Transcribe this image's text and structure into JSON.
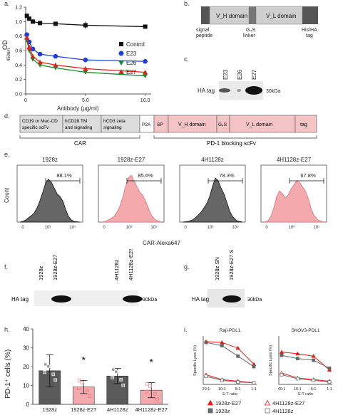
{
  "panels": {
    "a": {
      "label": "a.",
      "ylabel": "OD",
      "ylabel_sub": "450nm",
      "xlabel": "Antibody (μg/ml)",
      "yticks": [
        "0.0",
        "0.2",
        "0.4",
        "0.6",
        "0.8",
        "1.0",
        "1.2"
      ],
      "xticks": [
        "0",
        "5.0",
        "10.0"
      ]
    },
    "b": {
      "label": "b.",
      "signal": "signal\npeptide",
      "vh": "V_H domain",
      "vl": "V_L domain",
      "g4s": "G₄S\nlinker",
      "tag": "His/HA\ntag"
    },
    "c": {
      "label": "c.",
      "lanes": [
        "E23",
        "E26",
        "E27"
      ],
      "ha": "HA tag",
      "kda": "30kDa"
    },
    "d": {
      "label": "d.",
      "box1": "CD19 or Muc-CD",
      "box1b": "specific scFv",
      "box2": "hCD28 TM",
      "box2b": "and signaling",
      "box3": "hCD3 zeta",
      "box3b": "signaling",
      "p2a": "P2A",
      "sp": "SP",
      "vh": "V_H domain",
      "g4s": "G₄S",
      "vl": "V_L domain",
      "tag": "tag",
      "car": "CAR",
      "scfv": "PD-1 blocking scFv"
    },
    "e": {
      "label": "e.",
      "titles": [
        "1928z",
        "1928z-E27",
        "4H1128z",
        "4H1128z-E27"
      ],
      "pcts": [
        "88.1%",
        "85.6%",
        "78.3%",
        "67.8%"
      ],
      "ylabel": "Count",
      "xlabel": "CAR-Alexa647"
    },
    "f": {
      "label": "f.",
      "lanes": [
        "1928z",
        "1928z-E27",
        "4H1128z",
        "4H1128z-E27"
      ],
      "ha": "HA tag",
      "kda": "30kDa"
    },
    "g": {
      "label": "g.",
      "lanes": [
        "1928z SN",
        "1928z-E27 SN"
      ],
      "ha": "HA tag",
      "kda": "30kDa"
    },
    "h": {
      "label": "h.",
      "ylabel": "PD-1⁺ cells (%)",
      "yticks": [
        "0",
        "10",
        "20",
        "30",
        "40"
      ],
      "star": "*"
    },
    "i": {
      "label": "i.",
      "titles": [
        "Raji-PDL1",
        "SKOV3-PDL1"
      ],
      "ylabel": "Specific Lysis (%)",
      "xlabel": "E:T ratio",
      "xticks": [
        "20:1",
        "10:1",
        "5:1",
        "1:1"
      ],
      "xticks2": [
        "40:1",
        "10:1",
        "5:1",
        "1:1"
      ],
      "legend": [
        "1928z-E27",
        "1928z",
        "4H1128z-E27",
        "4H1128z"
      ]
    }
  },
  "chart_data": [
    {
      "type": "line",
      "panel": "a",
      "xlabel": "Antibody (μg/ml)",
      "ylabel": "OD 450nm",
      "xlim": [
        0,
        10.5
      ],
      "ylim": [
        0,
        1.2
      ],
      "x": [
        0.1,
        0.3,
        0.6,
        1.2,
        2.5,
        5.0,
        10.0
      ],
      "series": [
        {
          "name": "Control",
          "color": "#111111",
          "marker": "square",
          "values": [
            1.08,
            1.04,
            1.0,
            0.98,
            0.97,
            0.95,
            0.93
          ]
        },
        {
          "name": "E23",
          "color": "#1f3fd6",
          "marker": "circle",
          "values": [
            0.82,
            0.72,
            0.62,
            0.55,
            0.52,
            0.47,
            0.45
          ]
        },
        {
          "name": "E26",
          "color": "#1a8a2a",
          "marker": "tri-down",
          "values": [
            0.74,
            0.6,
            0.48,
            0.4,
            0.36,
            0.3,
            0.25
          ]
        },
        {
          "name": "E27",
          "color": "#e0201b",
          "marker": "tri-up",
          "values": [
            0.78,
            0.65,
            0.52,
            0.44,
            0.4,
            0.35,
            0.3
          ]
        }
      ]
    },
    {
      "type": "bar",
      "panel": "h",
      "ylabel": "PD-1⁺ cells (%)",
      "ylim": [
        0,
        40
      ],
      "categories": [
        "1928z",
        "1928z-E27",
        "4H1128z",
        "4H1128z-E27"
      ],
      "values": [
        17.8,
        9.2,
        15.0,
        7.5
      ],
      "errors": [
        8.5,
        3.5,
        4.0,
        4.0
      ],
      "colors": [
        "#5a5a5a",
        "#f4a9ad",
        "#5a5a5a",
        "#f4a9ad"
      ],
      "significant": [
        false,
        true,
        false,
        true
      ]
    },
    {
      "type": "line",
      "panel": "i-left",
      "title": "Raji-PDL1",
      "xlabel": "E:T ratio",
      "categories": [
        "20:1",
        "10:1",
        "5:1",
        "1:1"
      ],
      "ylim": [
        0,
        60
      ],
      "series": [
        {
          "name": "1928z-E27",
          "values": [
            53,
            52,
            45,
            25
          ]
        },
        {
          "name": "1928z",
          "values": [
            52,
            48,
            35,
            22
          ]
        },
        {
          "name": "4H1128z-E27",
          "values": [
            12,
            6,
            4,
            2
          ]
        },
        {
          "name": "4H1128z",
          "values": [
            10,
            5,
            3,
            2
          ]
        }
      ]
    },
    {
      "type": "line",
      "panel": "i-right",
      "title": "SKOV3-PDL1",
      "xlabel": "E:T ratio",
      "categories": [
        "40:1",
        "10:1",
        "5:1",
        "1:1"
      ],
      "ylim": [
        0,
        60
      ],
      "series": [
        {
          "name": "1928z-E27",
          "values": [
            40,
            38,
            35,
            18
          ]
        },
        {
          "name": "1928z",
          "values": [
            36,
            32,
            30,
            20
          ]
        },
        {
          "name": "4H1128z-E27",
          "values": [
            14,
            8,
            6,
            4
          ]
        },
        {
          "name": "4H1128z",
          "values": [
            12,
            7,
            5,
            3
          ]
        }
      ]
    }
  ]
}
